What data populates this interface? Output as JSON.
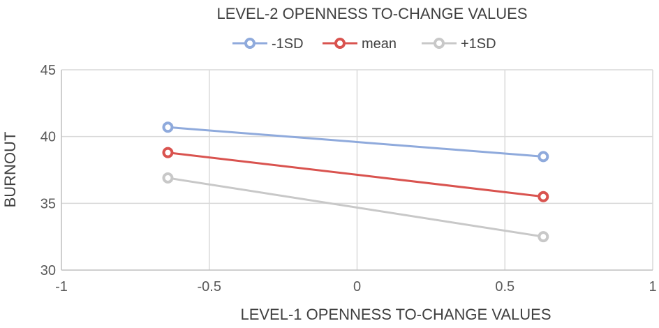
{
  "chart_data": {
    "type": "line",
    "title": "LEVEL-2 OPENNESS TO-CHANGE  VALUES",
    "xlabel": "LEVEL-1 OPENNESS TO-CHANGE VALUES",
    "ylabel": "BURNOUT",
    "xlim": [
      -1,
      1
    ],
    "ylim": [
      30,
      45
    ],
    "xticks": [
      -1,
      -0.5,
      0,
      0.5,
      1
    ],
    "xtick_labels": [
      "-1",
      "-0.5",
      "0",
      "0.5",
      "1"
    ],
    "yticks": [
      30,
      35,
      40,
      45
    ],
    "ytick_labels": [
      "30",
      "35",
      "40",
      "45"
    ],
    "grid": true,
    "legend_position": "top",
    "series": [
      {
        "name": "-1SD",
        "color": "#8faadc",
        "x": [
          -0.64,
          0.63
        ],
        "y": [
          40.7,
          38.5
        ]
      },
      {
        "name": "mean",
        "color": "#d9534f",
        "x": [
          -0.64,
          0.63
        ],
        "y": [
          38.8,
          35.5
        ]
      },
      {
        "name": "+1SD",
        "color": "#c8c8c8",
        "x": [
          -0.64,
          0.63
        ],
        "y": [
          36.9,
          32.5
        ]
      }
    ]
  }
}
